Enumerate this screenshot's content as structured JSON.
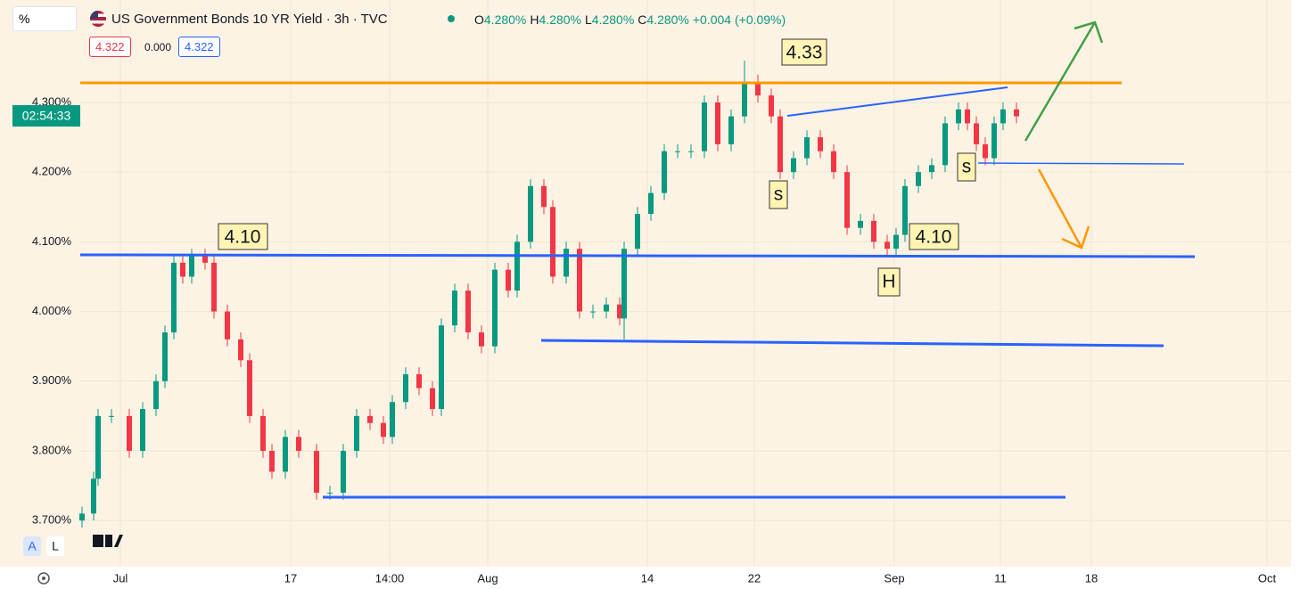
{
  "header": {
    "search": "%",
    "symbol": "US Government Bonds 10 YR Yield · 3h · TVC",
    "ohlc": [
      {
        "key": "O",
        "value": "4.280%"
      },
      {
        "key": "H",
        "value": "4.280%"
      },
      {
        "key": "L",
        "value": "4.280%"
      },
      {
        "key": "C",
        "value": "4.280%"
      }
    ],
    "change": "+0.004 (+0.09%)",
    "bid": "4.322",
    "spread": "0.000",
    "ask": "4.322",
    "countdown": "02:54:33",
    "scale_buttons": [
      "A",
      "L"
    ]
  },
  "annotations": [
    "4.33",
    "4.10",
    "4.10",
    "s",
    "s",
    "H"
  ],
  "chart_data": {
    "type": "candlestick",
    "up_color": "#089981",
    "down_color": "#f23645",
    "grid": true,
    "x": [
      -2.15,
      -1.5,
      -1.25,
      -0.5,
      0.5,
      1.25,
      2,
      2.5,
      3,
      3.5,
      4,
      4.75,
      5.25,
      6,
      6.75,
      7.25,
      8,
      8.5,
      9.25,
      10,
      11,
      11.75,
      12.5,
      13.25,
      14,
      14.75,
      15.25,
      16,
      16.75,
      17.5,
      18,
      18.75,
      19.5,
      20.25,
      21,
      21.75,
      22.25,
      23,
      23.75,
      24.25,
      25,
      25.75,
      26.5,
      27.25,
      28,
      28.25,
      29,
      29.75,
      30.5,
      31.25,
      32,
      32.75,
      33.5,
      34.25,
      35,
      35.75,
      36.5,
      37,
      37.75,
      38.5,
      39.25,
      40,
      40.75,
      41.5,
      42.25,
      43,
      43.5,
      44,
      44.75,
      45.5,
      46.25,
      47,
      47.5,
      48,
      48.5,
      49,
      49.5,
      50.25
    ],
    "open": [
      3.7,
      3.71,
      3.76,
      3.85,
      3.85,
      3.8,
      3.86,
      3.9,
      3.97,
      4.07,
      4.05,
      4.08,
      4.07,
      4.0,
      3.96,
      3.93,
      3.85,
      3.8,
      3.77,
      3.82,
      3.8,
      3.74,
      3.74,
      3.8,
      3.85,
      3.84,
      3.82,
      3.87,
      3.91,
      3.89,
      3.86,
      3.98,
      4.03,
      3.97,
      3.95,
      4.06,
      4.03,
      4.1,
      4.18,
      4.15,
      4.05,
      4.09,
      4.0,
      4.0,
      4.01,
      3.99,
      4.09,
      4.14,
      4.17,
      4.23,
      4.23,
      4.23,
      4.3,
      4.24,
      4.28,
      4.33,
      4.31,
      4.28,
      4.2,
      4.22,
      4.25,
      4.23,
      4.2,
      4.12,
      4.13,
      4.1,
      4.09,
      4.11,
      4.18,
      4.2,
      4.21,
      4.27,
      4.29,
      4.27,
      4.24,
      4.22,
      4.27,
      4.29
    ],
    "high": [
      3.72,
      3.77,
      3.86,
      3.86,
      3.86,
      3.87,
      3.91,
      3.98,
      4.08,
      4.08,
      4.09,
      4.09,
      4.08,
      4.01,
      3.97,
      3.94,
      3.86,
      3.81,
      3.83,
      3.83,
      3.81,
      3.75,
      3.81,
      3.86,
      3.86,
      3.85,
      3.88,
      3.92,
      3.92,
      3.9,
      3.99,
      4.04,
      4.04,
      3.98,
      4.07,
      4.07,
      4.11,
      4.19,
      4.19,
      4.16,
      4.1,
      4.1,
      4.01,
      4.02,
      4.02,
      4.1,
      4.15,
      4.18,
      4.24,
      4.24,
      4.24,
      4.31,
      4.31,
      4.29,
      4.36,
      4.34,
      4.32,
      4.29,
      4.23,
      4.26,
      4.26,
      4.24,
      4.21,
      4.14,
      4.14,
      4.11,
      4.12,
      4.19,
      4.21,
      4.22,
      4.28,
      4.3,
      4.3,
      4.28,
      4.25,
      4.28,
      4.3,
      4.3
    ],
    "low": [
      3.69,
      3.7,
      3.75,
      3.84,
      3.79,
      3.79,
      3.85,
      3.89,
      3.96,
      4.04,
      4.04,
      4.06,
      3.99,
      3.95,
      3.92,
      3.84,
      3.79,
      3.76,
      3.76,
      3.79,
      3.73,
      3.73,
      3.73,
      3.79,
      3.83,
      3.81,
      3.81,
      3.86,
      3.88,
      3.85,
      3.85,
      3.97,
      3.96,
      3.94,
      3.94,
      4.02,
      4.02,
      4.09,
      4.14,
      4.04,
      4.04,
      3.99,
      3.99,
      3.99,
      3.98,
      3.96,
      4.08,
      4.13,
      4.16,
      4.22,
      4.22,
      4.22,
      4.23,
      4.23,
      4.27,
      4.3,
      4.27,
      4.19,
      4.19,
      4.21,
      4.22,
      4.19,
      4.11,
      4.11,
      4.09,
      4.08,
      4.08,
      4.1,
      4.17,
      4.19,
      4.2,
      4.26,
      4.26,
      4.23,
      4.21,
      4.21,
      4.26,
      4.27
    ],
    "close": [
      3.71,
      3.76,
      3.85,
      3.85,
      3.8,
      3.86,
      3.9,
      3.97,
      4.07,
      4.05,
      4.08,
      4.07,
      4.0,
      3.96,
      3.93,
      3.85,
      3.8,
      3.77,
      3.82,
      3.8,
      3.74,
      3.74,
      3.8,
      3.85,
      3.84,
      3.82,
      3.87,
      3.91,
      3.89,
      3.86,
      3.98,
      4.03,
      3.97,
      3.95,
      4.06,
      4.03,
      4.1,
      4.18,
      4.15,
      4.05,
      4.09,
      4.0,
      4.0,
      4.01,
      3.99,
      4.09,
      4.14,
      4.17,
      4.23,
      4.23,
      4.23,
      4.3,
      4.24,
      4.28,
      4.33,
      4.31,
      4.28,
      4.2,
      4.22,
      4.25,
      4.23,
      4.2,
      4.12,
      4.13,
      4.1,
      4.09,
      4.11,
      4.18,
      4.2,
      4.21,
      4.27,
      4.29,
      4.27,
      4.24,
      4.22,
      4.27,
      4.29,
      4.28
    ],
    "xlim": [
      -2.25,
      65.25
    ],
    "ylim": [
      3.635,
      4.447
    ],
    "xticks": [
      {
        "value": 0,
        "label": "Jul"
      },
      {
        "value": 9.55,
        "label": "17"
      },
      {
        "value": 15.1,
        "label": "14:00"
      },
      {
        "value": 20.6,
        "label": "Aug"
      },
      {
        "value": 29.55,
        "label": "14"
      },
      {
        "value": 35.55,
        "label": "22"
      },
      {
        "value": 43.4,
        "label": "Sep"
      },
      {
        "value": 49.35,
        "label": "11"
      },
      {
        "value": 54.45,
        "label": "18"
      },
      {
        "value": 64.3,
        "label": "Oct"
      }
    ],
    "yticks": [
      {
        "value": 3.7,
        "label": "3.700%"
      },
      {
        "value": 3.8,
        "label": "3.800%"
      },
      {
        "value": 3.9,
        "label": "3.900%"
      },
      {
        "value": 4.0,
        "label": "4.000%"
      },
      {
        "value": 4.1,
        "label": "4.100%"
      },
      {
        "value": 4.2,
        "label": "4.200%"
      },
      {
        "value": 4.3,
        "label": "4.300%"
      }
    ]
  }
}
